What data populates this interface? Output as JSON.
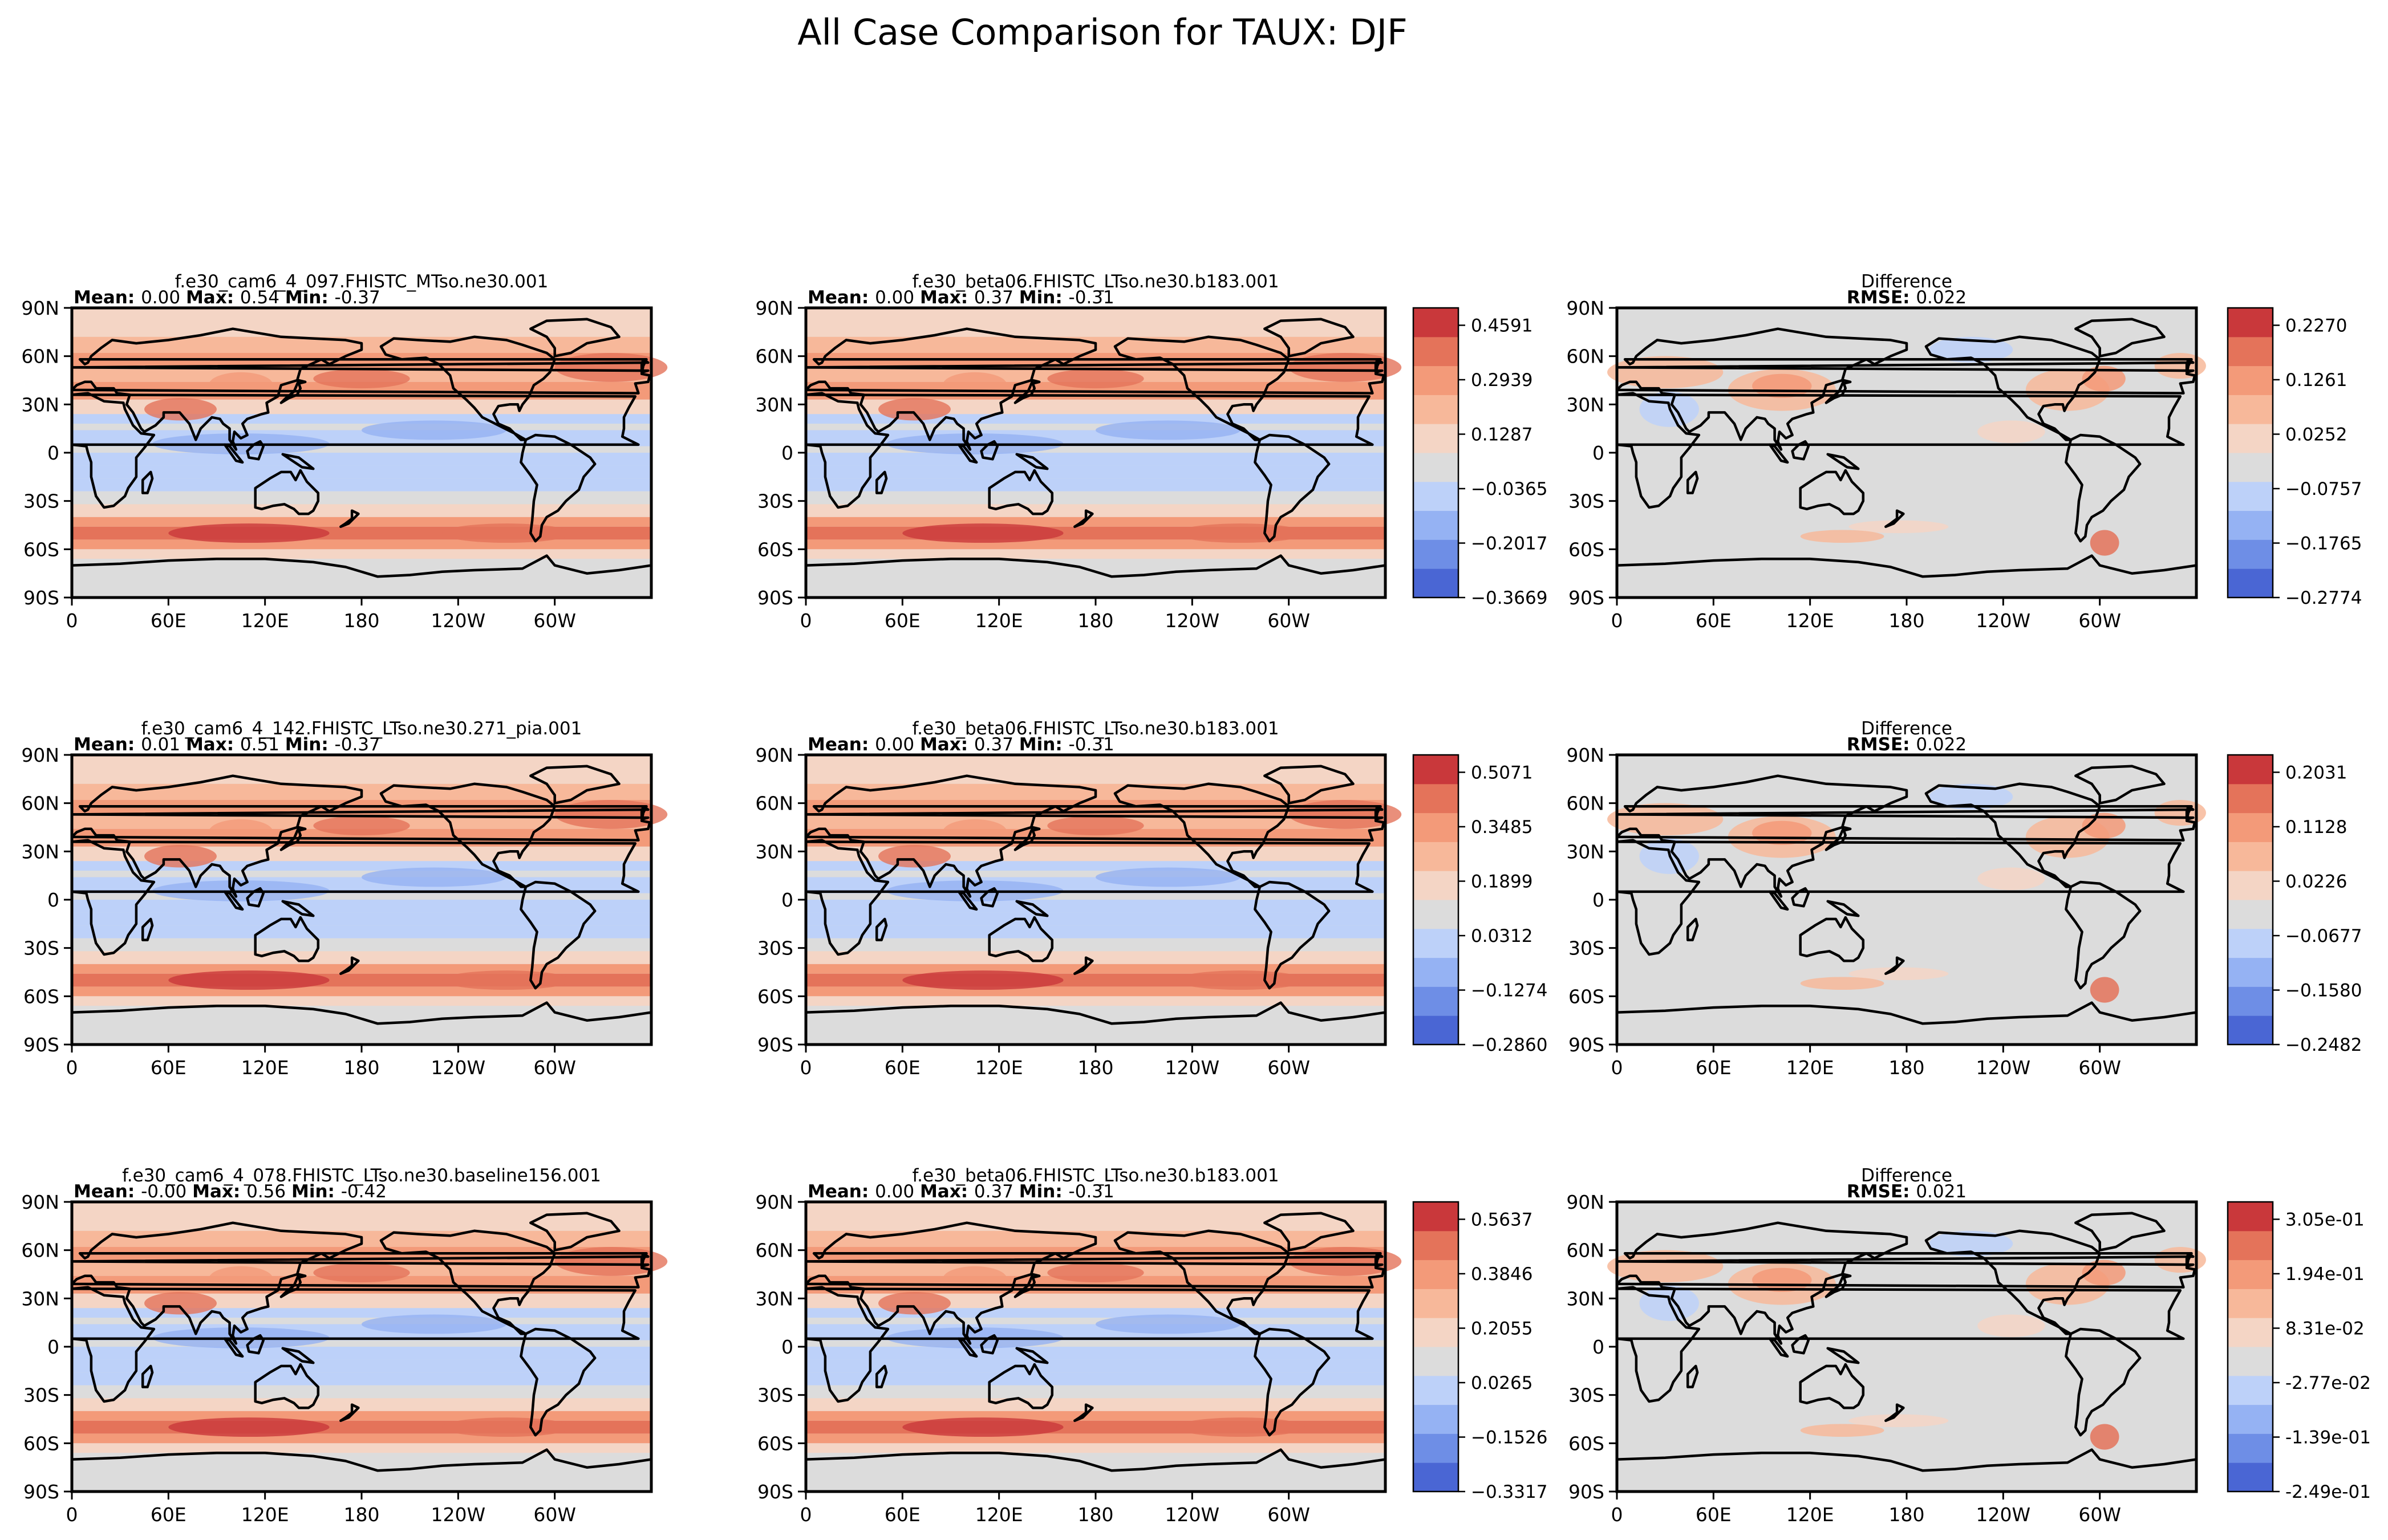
{
  "figure": {
    "suptitle": "All Case Comparison for TAUX: DJF",
    "stat_labels": {
      "mean": "Mean:",
      "max": "Max:",
      "min": "Min:",
      "rmse": "RMSE:"
    },
    "xticks": [
      "0",
      "60E",
      "120E",
      "180",
      "120W",
      "60W"
    ],
    "yticks": [
      "90N",
      "60N",
      "30N",
      "0",
      "30S",
      "60S",
      "90S"
    ],
    "colormap": [
      "#4a66d4",
      "#6e8ee6",
      "#95b2f3",
      "#bdd1f9",
      "#dcdcdc",
      "#f4d5c5",
      "#f7b89a",
      "#f39a79",
      "#e4735a",
      "#c9383b"
    ]
  },
  "chart_data": [
    {
      "type": "heatmap",
      "panel": "test",
      "row": 1,
      "title": "f.e30_cam6_4_097.FHISTC_MTso.ne30.001",
      "stats": {
        "mean": "0.00",
        "max": "0.54",
        "min": "-0.37"
      },
      "colorbar": null
    },
    {
      "type": "heatmap",
      "panel": "reference",
      "row": 1,
      "title": "f.e30_beta06.FHISTC_LTso.ne30.b183.001",
      "stats": {
        "mean": "0.00",
        "max": "0.37",
        "min": "-0.31"
      },
      "colorbar": [
        "0.4591",
        "0.2939",
        "0.1287",
        "−0.0365",
        "−0.2017",
        "−0.3669"
      ]
    },
    {
      "type": "heatmap",
      "panel": "difference",
      "row": 1,
      "title": "Difference",
      "stats": {
        "rmse": "0.022"
      },
      "colorbar": [
        "0.2270",
        "0.1261",
        "0.0252",
        "−0.0757",
        "−0.1765",
        "−0.2774"
      ]
    },
    {
      "type": "heatmap",
      "panel": "test",
      "row": 2,
      "title": "f.e30_cam6_4_142.FHISTC_LTso.ne30.271_pia.001",
      "stats": {
        "mean": "0.01",
        "max": "0.51",
        "min": "-0.37"
      },
      "colorbar": null
    },
    {
      "type": "heatmap",
      "panel": "reference",
      "row": 2,
      "title": "f.e30_beta06.FHISTC_LTso.ne30.b183.001",
      "stats": {
        "mean": "0.00",
        "max": "0.37",
        "min": "-0.31"
      },
      "colorbar": [
        "0.5071",
        "0.3485",
        "0.1899",
        "0.0312",
        "−0.1274",
        "−0.2860"
      ]
    },
    {
      "type": "heatmap",
      "panel": "difference",
      "row": 2,
      "title": "Difference",
      "stats": {
        "rmse": "0.022"
      },
      "colorbar": [
        "0.2031",
        "0.1128",
        "0.0226",
        "−0.0677",
        "−0.1580",
        "−0.2482"
      ]
    },
    {
      "type": "heatmap",
      "panel": "test",
      "row": 3,
      "title": "f.e30_cam6_4_078.FHISTC_LTso.ne30.baseline156.001",
      "stats": {
        "mean": "-0.00",
        "max": "0.56",
        "min": "-0.42"
      },
      "colorbar": null
    },
    {
      "type": "heatmap",
      "panel": "reference",
      "row": 3,
      "title": "f.e30_beta06.FHISTC_LTso.ne30.b183.001",
      "stats": {
        "mean": "0.00",
        "max": "0.37",
        "min": "-0.31"
      },
      "colorbar": [
        "0.5637",
        "0.3846",
        "0.2055",
        "0.0265",
        "−0.1526",
        "−0.3317"
      ]
    },
    {
      "type": "heatmap",
      "panel": "difference",
      "row": 3,
      "title": "Difference",
      "stats": {
        "rmse": "0.021"
      },
      "colorbar": [
        "3.05e-01",
        "1.94e-01",
        "8.31e-02",
        "-2.77e-02",
        "-1.39e-01",
        "-2.49e-01"
      ]
    }
  ]
}
